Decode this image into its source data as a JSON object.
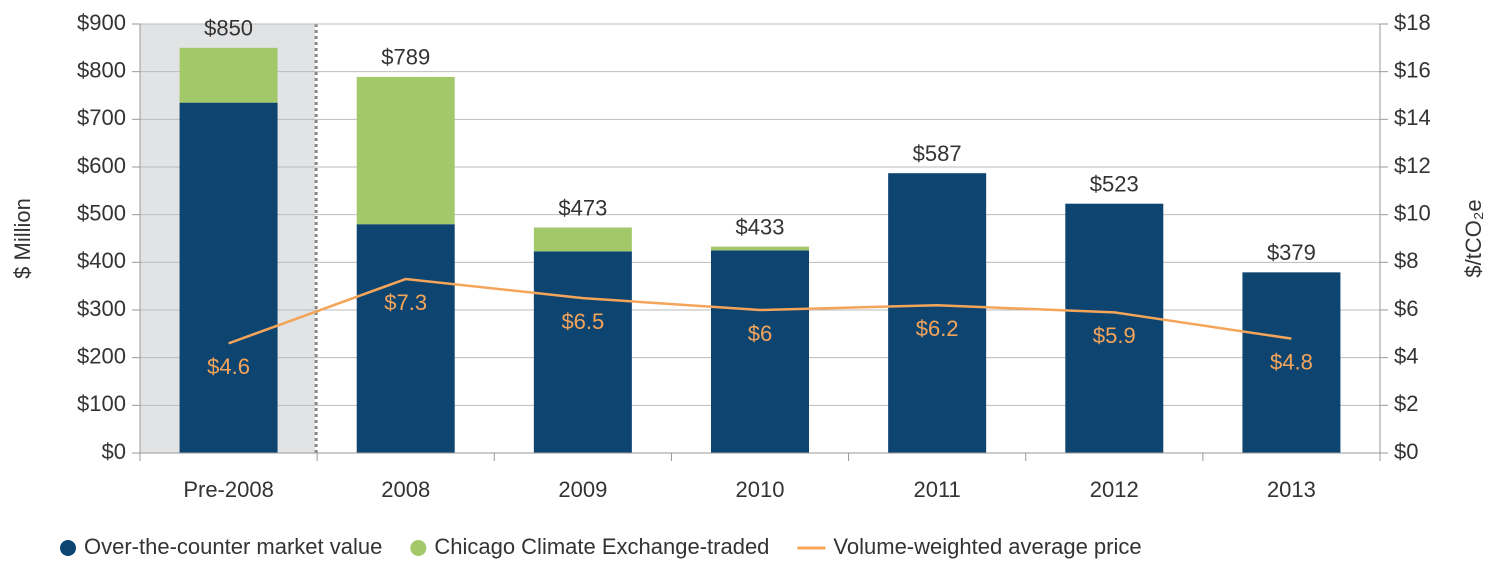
{
  "chart_data": {
    "type": "bar",
    "stacked": true,
    "categories": [
      "Pre-2008",
      "2008",
      "2009",
      "2010",
      "2011",
      "2012",
      "2013"
    ],
    "series": [
      {
        "name": "Over-the-counter market value",
        "type": "bar",
        "color": "#0e4470",
        "values": [
          735,
          480,
          423,
          425,
          587,
          523,
          379
        ]
      },
      {
        "name": "Chicago Climate Exchange-traded",
        "type": "bar",
        "color": "#a3c86a",
        "values": [
          115,
          309,
          50,
          8,
          null,
          null,
          null
        ]
      },
      {
        "name": "Volume-weighted average price",
        "type": "line",
        "axis": "y2",
        "color": "#f5a55a",
        "values": [
          4.6,
          7.3,
          6.5,
          6,
          6.2,
          5.9,
          4.8
        ],
        "value_labels": [
          "$4.6",
          "$7.3",
          "$6.5",
          "$6",
          "$6.2",
          "$5.9",
          "$4.8"
        ]
      }
    ],
    "total_labels": [
      "$850",
      "$789",
      "$473",
      "$433",
      "$587",
      "$523",
      "$379"
    ],
    "ylabel": "$ Million",
    "y2label": "$/tCO₂e",
    "ylim": [
      0,
      900
    ],
    "yticks": [
      {
        "value": 0,
        "label": "$0"
      },
      {
        "value": 100,
        "label": "$100"
      },
      {
        "value": 200,
        "label": "$200"
      },
      {
        "value": 300,
        "label": "$300"
      },
      {
        "value": 400,
        "label": "$400"
      },
      {
        "value": 500,
        "label": "$500"
      },
      {
        "value": 600,
        "label": "$600"
      },
      {
        "value": 700,
        "label": "$700"
      },
      {
        "value": 800,
        "label": "$800"
      },
      {
        "value": 900,
        "label": "$900"
      }
    ],
    "y2lim": [
      0,
      18
    ],
    "y2ticks": [
      {
        "value": 0,
        "label": "$0"
      },
      {
        "value": 2,
        "label": "$2"
      },
      {
        "value": 4,
        "label": "$4"
      },
      {
        "value": 6,
        "label": "$6"
      },
      {
        "value": 8,
        "label": "$8"
      },
      {
        "value": 10,
        "label": "$10"
      },
      {
        "value": 12,
        "label": "$12"
      },
      {
        "value": 14,
        "label": "$14"
      },
      {
        "value": 16,
        "label": "$16"
      },
      {
        "value": 18,
        "label": "$18"
      }
    ],
    "grid": true,
    "legend": "bottom"
  }
}
